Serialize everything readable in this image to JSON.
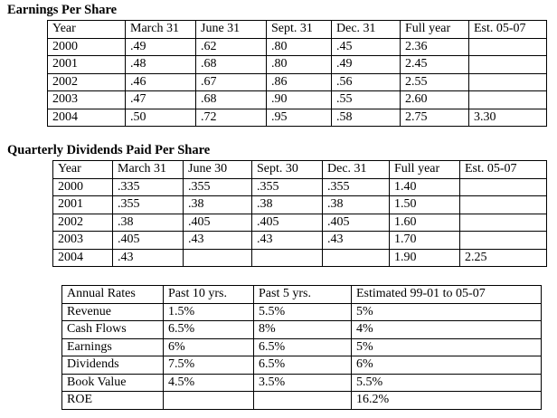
{
  "tables": [
    {
      "title": "Earnings Per Share",
      "header": [
        "Year",
        "March 31",
        "June 31",
        "Sept. 31",
        "Dec. 31",
        "Full year",
        "Est. 05-07"
      ],
      "rows": [
        [
          "2000",
          ".49",
          ".62",
          ".80",
          ".45",
          "2.36",
          null
        ],
        [
          "2001",
          ".48",
          ".68",
          ".80",
          ".49",
          "2.45",
          null
        ],
        [
          "2002",
          ".46",
          ".67",
          ".86",
          ".56",
          "2.55",
          null
        ],
        [
          "2003",
          ".47",
          ".68",
          ".90",
          ".55",
          "2.60",
          null
        ],
        [
          "2004",
          ".50",
          ".72",
          ".95",
          ".58",
          "2.75",
          "3.30"
        ]
      ]
    },
    {
      "title": "Quarterly Dividends Paid Per Share",
      "header": [
        "Year",
        "March 31",
        "June 30",
        "Sept. 30",
        "Dec. 31",
        "Full year",
        "Est. 05-07"
      ],
      "rows": [
        [
          "2000",
          ".335",
          ".355",
          ".355",
          ".355",
          "1.40",
          null
        ],
        [
          "2001",
          ".355",
          ".38",
          ".38",
          ".38",
          "1.50",
          null
        ],
        [
          "2002",
          ".38",
          ".405",
          ".405",
          ".405",
          "1.60",
          null
        ],
        [
          "2003",
          ".405",
          ".43",
          ".43",
          ".43",
          "1.70",
          null
        ],
        [
          "2004",
          ".43",
          null,
          null,
          null,
          "1.90",
          "2.25"
        ]
      ]
    },
    {
      "header": [
        "Annual Rates",
        "Past 10 yrs.",
        "Past 5 yrs.",
        "Estimated 99-01 to 05-07"
      ],
      "rows": [
        [
          "Revenue",
          "1.5%",
          "5.5%",
          "5%"
        ],
        [
          "Cash Flows",
          "6.5%",
          "8%",
          "4%"
        ],
        [
          "Earnings",
          "6%",
          "6.5%",
          "5%"
        ],
        [
          "Dividends",
          "7.5%",
          "6.5%",
          "6%"
        ],
        [
          "Book Value",
          "4.5%",
          "3.5%",
          "5.5%"
        ],
        [
          "ROE",
          null,
          null,
          "16.2%"
        ]
      ]
    }
  ]
}
